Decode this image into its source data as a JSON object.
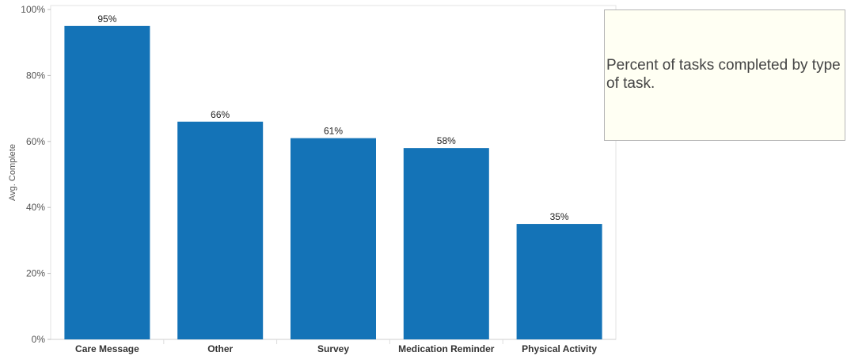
{
  "chart_data": {
    "type": "bar",
    "title": "",
    "xlabel": "",
    "ylabel": "Avg. Complete",
    "categories": [
      "Care Message",
      "Other",
      "Survey",
      "Medication Reminder",
      "Physical Activity"
    ],
    "values": [
      95,
      66,
      61,
      58,
      35
    ],
    "value_labels": [
      "95%",
      "66%",
      "61%",
      "58%",
      "35%"
    ],
    "ylim": [
      0,
      100
    ],
    "yticks": [
      0,
      20,
      40,
      60,
      80,
      100
    ],
    "ytick_labels": [
      "0%",
      "20%",
      "40%",
      "60%",
      "80%",
      "100%"
    ],
    "bar_color": "#1473b7",
    "grid": false,
    "legend": "none"
  },
  "annotation": {
    "text": "Percent of tasks completed by type of task."
  }
}
